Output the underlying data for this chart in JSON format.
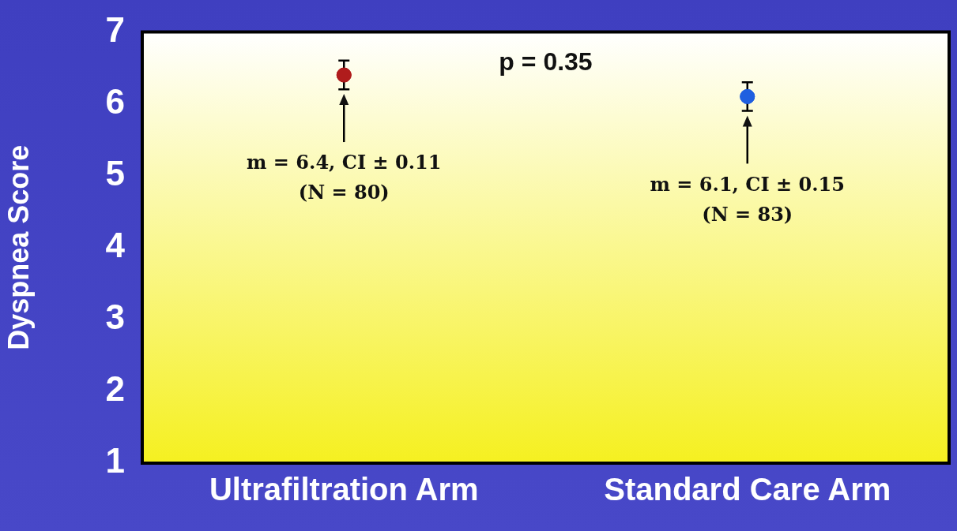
{
  "chart_data": {
    "type": "scatter",
    "ylabel": "Dyspnea Score",
    "categories": [
      "Ultrafiltration Arm",
      "Standard Care Arm"
    ],
    "series": [
      {
        "x": [
          "Ultrafiltration Arm",
          "Standard Care Arm"
        ],
        "values": [
          6.4,
          6.1
        ],
        "colors": [
          "#b01c1c",
          "#1f5fe0"
        ],
        "errors": [
          0.2,
          0.2
        ]
      }
    ],
    "ylim": [
      1,
      7
    ],
    "yticks": [
      1,
      2,
      3,
      4,
      5,
      6,
      7
    ],
    "grid": false,
    "legend": false,
    "marker": "circle",
    "annotations": [
      "p = 0.35",
      "m = 6.4, CI ± 0.11\n(N = 80)",
      "m = 6.1, CI ± 0.15\n(N = 83)"
    ]
  }
}
